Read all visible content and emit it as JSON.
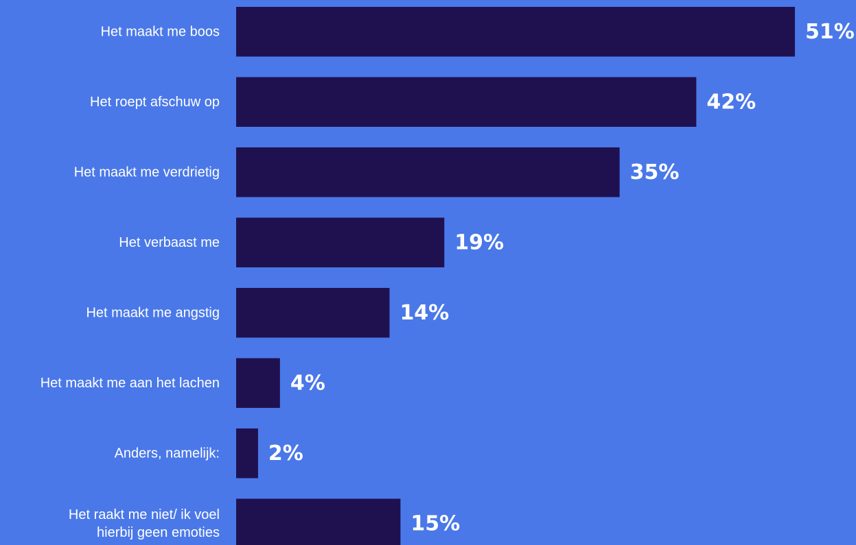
{
  "chart_data": {
    "type": "bar",
    "orientation": "horizontal",
    "categories": [
      [
        "Het maakt me boos"
      ],
      [
        "Het roept afschuw op"
      ],
      [
        "Het maakt me verdrietig"
      ],
      [
        "Het verbaast me"
      ],
      [
        "Het maakt me angstig"
      ],
      [
        "Het maakt me aan het lachen"
      ],
      [
        "Anders, namelijk:"
      ],
      [
        "Het raakt me niet/ ik voel",
        "hierbij geen emoties"
      ]
    ],
    "values": [
      51,
      42,
      35,
      19,
      14,
      4,
      2,
      15
    ],
    "value_labels": [
      "51%",
      "42%",
      "35%",
      "19%",
      "14%",
      "4%",
      "2%",
      "15%"
    ],
    "unit": "%",
    "xlim": [
      0,
      51
    ],
    "grid": false,
    "legend": "none",
    "colors": {
      "background": "#4a78e8",
      "bar": "#1f1150",
      "text": "#ffffff"
    }
  }
}
